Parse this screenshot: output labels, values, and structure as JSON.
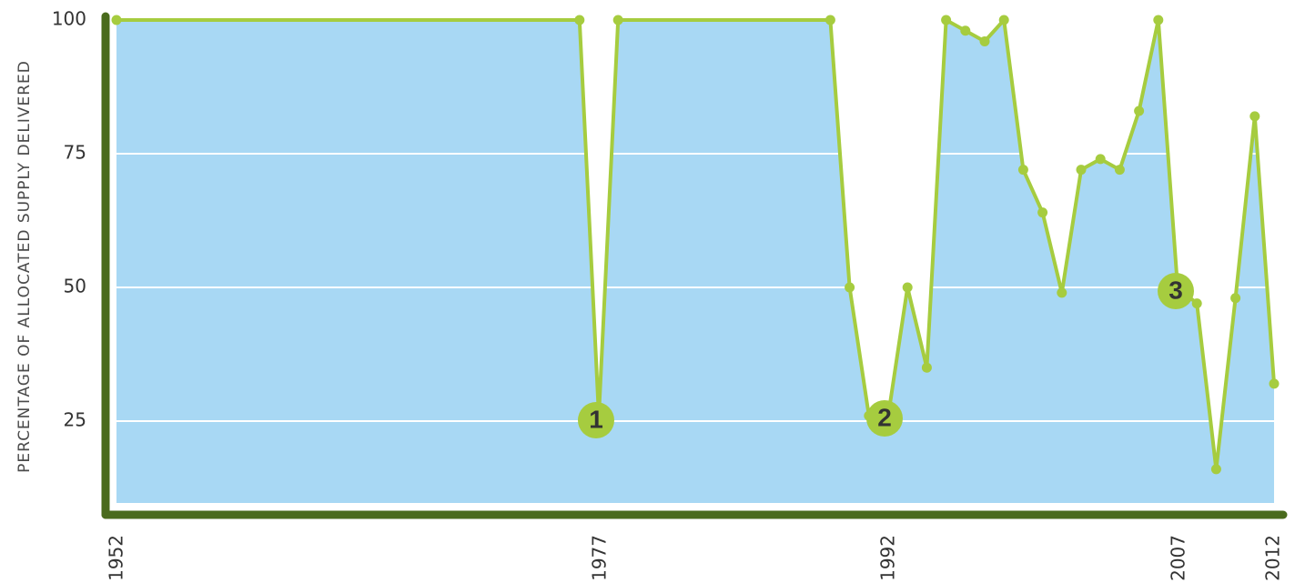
{
  "chart_data": {
    "type": "area",
    "ylabel": "PERCENTAGE OF ALLOCATED SUPPLY  DELIVERED",
    "xlabel": "",
    "yticks": [
      25,
      50,
      75,
      100
    ],
    "xticks": [
      "1952",
      "1977",
      "1992",
      "2007",
      "2012"
    ],
    "xlim": [
      1952,
      2012
    ],
    "ylim": [
      10,
      100
    ],
    "grid": true,
    "points": [
      {
        "x": 1952,
        "y": 100
      },
      {
        "x": 1976,
        "y": 100
      },
      {
        "x": 1977,
        "y": 26
      },
      {
        "x": 1978,
        "y": 100
      },
      {
        "x": 1989,
        "y": 100
      },
      {
        "x": 1990,
        "y": 50
      },
      {
        "x": 1991,
        "y": 26
      },
      {
        "x": 1992,
        "y": 26
      },
      {
        "x": 1993,
        "y": 50
      },
      {
        "x": 1994,
        "y": 35
      },
      {
        "x": 1995,
        "y": 100
      },
      {
        "x": 1996,
        "y": 98
      },
      {
        "x": 1997,
        "y": 96
      },
      {
        "x": 1998,
        "y": 100
      },
      {
        "x": 1999,
        "y": 72
      },
      {
        "x": 2000,
        "y": 64
      },
      {
        "x": 2001,
        "y": 49
      },
      {
        "x": 2002,
        "y": 72
      },
      {
        "x": 2003,
        "y": 74
      },
      {
        "x": 2004,
        "y": 72
      },
      {
        "x": 2005,
        "y": 83
      },
      {
        "x": 2006,
        "y": 100
      },
      {
        "x": 2007,
        "y": 50
      },
      {
        "x": 2008,
        "y": 47
      },
      {
        "x": 2009,
        "y": 16
      },
      {
        "x": 2010,
        "y": 48
      },
      {
        "x": 2011,
        "y": 82
      },
      {
        "x": 2012,
        "y": 32
      }
    ],
    "annotations": [
      {
        "label": "1",
        "x": 1977,
        "y": 26
      },
      {
        "label": "2",
        "x": 1992,
        "y": 26
      },
      {
        "label": "3",
        "x": 2007,
        "y": 50
      }
    ]
  },
  "colors": {
    "fill": "#a8d8f4",
    "line": "#a6cc3f",
    "axis": "#4a6b1d",
    "grid": "#ffffff",
    "marker_fill": "#a6cc3f"
  }
}
